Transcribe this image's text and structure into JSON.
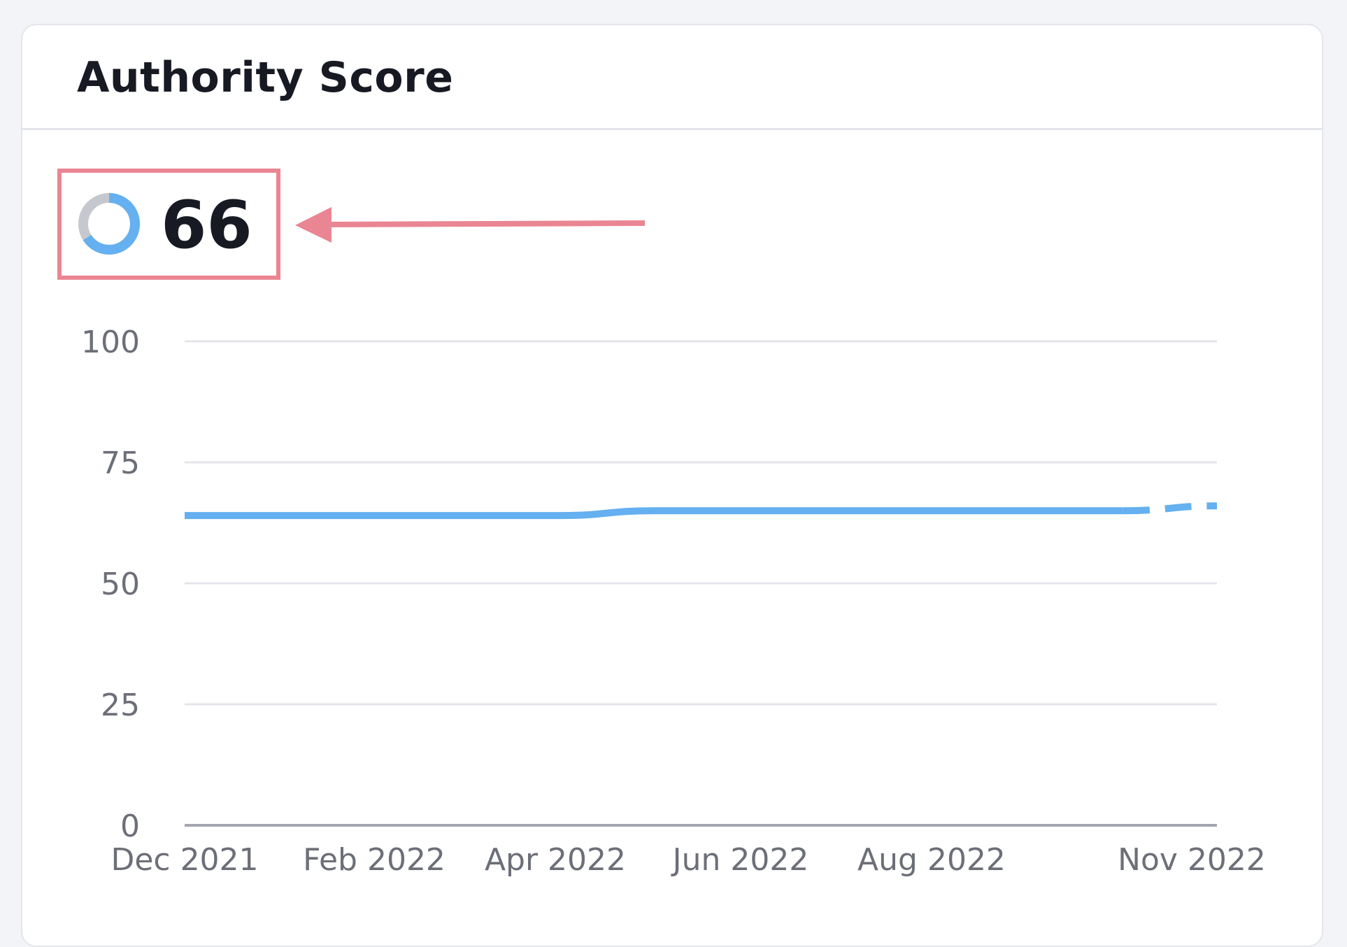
{
  "widget": {
    "title": "Authority Score",
    "score": "66",
    "score_ring_fraction": 0.66
  },
  "colors": {
    "line": "#64b0f0",
    "ring_track": "#c6c8cf",
    "grid": "#e3e5ea",
    "baseline": "#a4a6ad",
    "annotation": "#ea8593",
    "tick_text": "#6c6f78"
  },
  "chart_data": {
    "type": "line",
    "title": "Authority Score",
    "xlabel": "",
    "ylabel": "",
    "ylim": [
      0,
      100
    ],
    "yticks": [
      "0",
      "25",
      "50",
      "75",
      "100"
    ],
    "x_tick_labels": [
      "Dec 2021",
      "Feb 2022",
      "Apr 2022",
      "Jun 2022",
      "Aug 2022",
      "Nov 2022"
    ],
    "grid": true,
    "legend": "none",
    "series": [
      {
        "x": [
          "Dec 2021",
          "Jan 2022",
          "Feb 2022",
          "Mar 2022",
          "Apr 2022",
          "May 2022",
          "Jun 2022",
          "Jul 2022",
          "Aug 2022",
          "Sep 2022",
          "Oct 2022",
          "Nov 2022"
        ],
        "y": [
          64,
          64,
          64,
          64,
          64,
          65,
          65,
          65,
          65,
          65,
          65,
          66
        ],
        "dashed_from": "Oct 2022"
      }
    ],
    "annotations": [
      {
        "type": "highlight-box-with-arrow",
        "target": "score"
      }
    ]
  }
}
